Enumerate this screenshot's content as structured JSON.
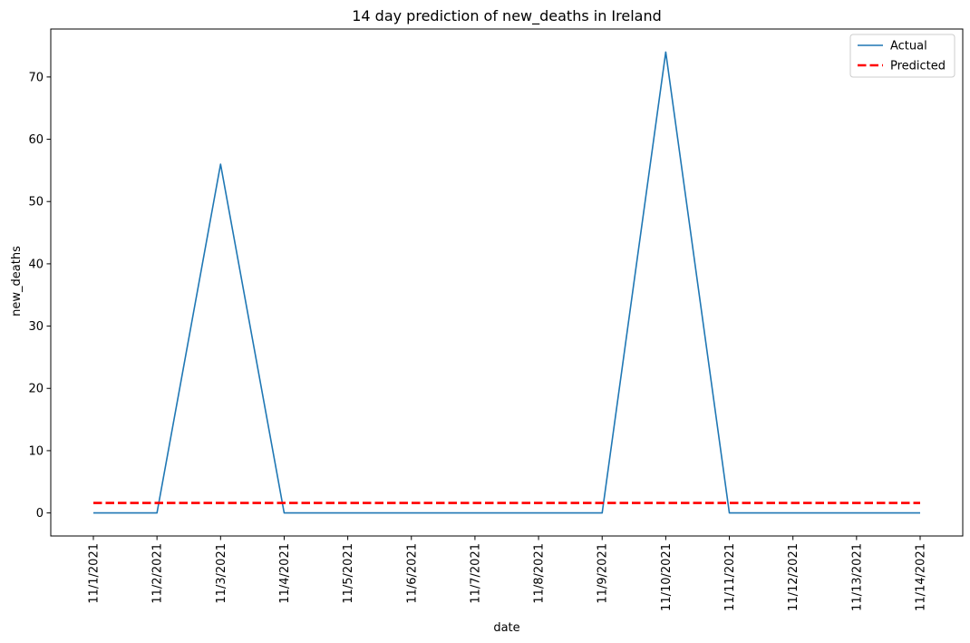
{
  "chart_data": {
    "type": "line",
    "title": "14 day prediction of new_deaths in Ireland",
    "xlabel": "date",
    "ylabel": "new_deaths",
    "x": [
      "11/1/2021",
      "11/2/2021",
      "11/3/2021",
      "11/4/2021",
      "11/5/2021",
      "11/6/2021",
      "11/7/2021",
      "11/8/2021",
      "11/9/2021",
      "11/10/2021",
      "11/11/2021",
      "11/12/2021",
      "11/13/2021",
      "11/14/2021"
    ],
    "series": [
      {
        "name": "Actual",
        "values": [
          0,
          0,
          56,
          0,
          0,
          0,
          0,
          0,
          0,
          74,
          0,
          0,
          0,
          0
        ],
        "color": "#1f77b4",
        "style": "solid"
      },
      {
        "name": "Predicted",
        "values": [
          1.6,
          1.6,
          1.6,
          1.6,
          1.6,
          1.6,
          1.6,
          1.6,
          1.6,
          1.6,
          1.6,
          1.6,
          1.6,
          1.6
        ],
        "color": "#ff0000",
        "style": "dashed"
      }
    ],
    "yticks": [
      0,
      10,
      20,
      30,
      40,
      50,
      60,
      70
    ],
    "ylim": [
      -3.7,
      77.7
    ],
    "grid": false,
    "legend": "top-right"
  }
}
